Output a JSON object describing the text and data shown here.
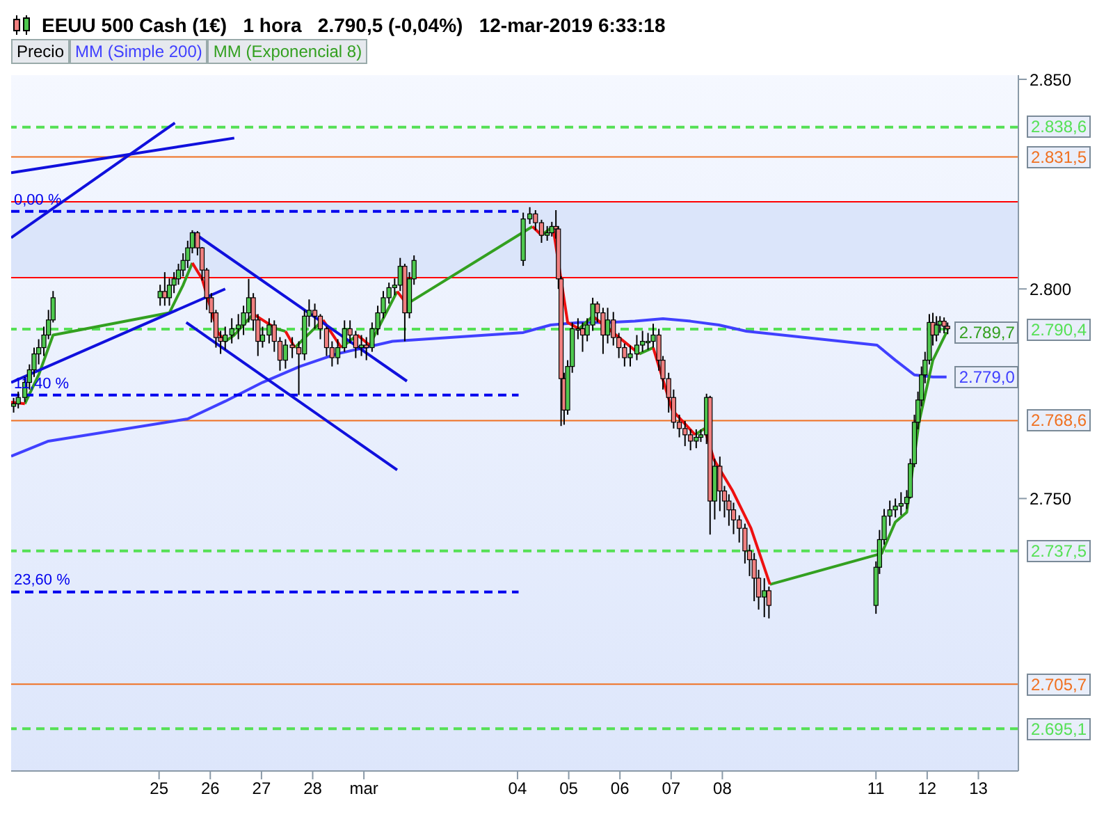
{
  "chart_data": {
    "type": "candlestick",
    "title": "EEUU 500 Cash (1€)   1 hora   2.790,5 (-0,04%)   12-mar-2019 6:33:18",
    "legend": "top left",
    "xlim": [
      "2019-02-22T02:40",
      "2019-03-13T18:45"
    ],
    "xticks": [
      {
        "value": "2019-02-25",
        "label": "25"
      },
      {
        "value": "2019-02-26",
        "label": "26"
      },
      {
        "value": "2019-02-27",
        "label": "27"
      },
      {
        "value": "2019-02-28",
        "label": "28"
      },
      {
        "value": "2019-03-01",
        "label": "mar"
      },
      {
        "value": "2019-03-04",
        "label": "04"
      },
      {
        "value": "2019-03-05",
        "label": "05"
      },
      {
        "value": "2019-03-06",
        "label": "06"
      },
      {
        "value": "2019-03-07",
        "label": "07"
      },
      {
        "value": "2019-03-08",
        "label": "08"
      },
      {
        "value": "2019-03-11",
        "label": "11"
      },
      {
        "value": "2019-03-12",
        "label": "12"
      },
      {
        "value": "2019-03-13",
        "label": "13"
      }
    ],
    "ylim": [
      2685,
      2851
    ],
    "yticks": [
      {
        "value": 2750,
        "label": "2.750"
      },
      {
        "value": 2800,
        "label": "2.800"
      },
      {
        "value": 2850,
        "label": "2.850"
      }
    ],
    "x": [
      "2019-02-22T03:50",
      "2019-02-22T06:00",
      "2019-02-22T09:05",
      "2019-02-22T11:15",
      "2019-02-22T13:25",
      "2019-02-22T15:35",
      "2019-02-22T18:00",
      "2019-02-22T20:10",
      "2019-02-22T22:20",
      "2019-02-25T00:30",
      "2019-02-25T02:40",
      "2019-02-25T04:50",
      "2019-02-25T07:00",
      "2019-02-25T09:05",
      "2019-02-25T11:15",
      "2019-02-25T13:25",
      "2019-02-25T15:35",
      "2019-02-25T18:00",
      "2019-02-25T20:10",
      "2019-02-25T22:20",
      "2019-02-26T00:30",
      "2019-02-26T02:40",
      "2019-02-26T04:50",
      "2019-02-26T07:00",
      "2019-02-26T10:05",
      "2019-02-26T13:10",
      "2019-02-26T15:35",
      "2019-02-26T18:00",
      "2019-02-26T20:10",
      "2019-02-26T22:20",
      "2019-02-27T00:30",
      "2019-02-27T03:35",
      "2019-02-27T06:00",
      "2019-02-27T08:40",
      "2019-02-27T11:15",
      "2019-02-27T14:25",
      "2019-02-27T17:30",
      "2019-02-27T20:10",
      "2019-02-27T22:20",
      "2019-02-28T01:00",
      "2019-02-28T03:35",
      "2019-02-28T06:30",
      "2019-02-28T09:05",
      "2019-02-28T11:45",
      "2019-02-28T14:55",
      "2019-02-28T17:30",
      "2019-02-28T20:10",
      "2019-02-28T22:50",
      "2019-03-01T01:10",
      "2019-03-01T03:50",
      "2019-03-01T06:30",
      "2019-03-01T09:05",
      "2019-03-01T11:45",
      "2019-03-01T14:25",
      "2019-03-01T17:00",
      "2019-03-01T19:10",
      "2019-03-01T21:20",
      "2019-03-01T23:30",
      "2019-03-04T02:40",
      "2019-03-04T05:45",
      "2019-03-04T08:25",
      "2019-03-04T11:15",
      "2019-03-04T13:55",
      "2019-03-04T16:05",
      "2019-03-04T18:00",
      "2019-03-04T19:10",
      "2019-03-04T20:25",
      "2019-03-04T21:50",
      "2019-03-04T23:30",
      "2019-03-05T01:40",
      "2019-03-05T04:20",
      "2019-03-05T06:30",
      "2019-03-05T08:40",
      "2019-03-05T11:15",
      "2019-03-05T13:25",
      "2019-03-05T16:05",
      "2019-03-05T18:15",
      "2019-03-05T20:55",
      "2019-03-05T23:30",
      "2019-03-06T02:10",
      "2019-03-06T04:50",
      "2019-03-06T07:55",
      "2019-03-06T10:35",
      "2019-03-06T13:10",
      "2019-03-06T15:35",
      "2019-03-06T18:15",
      "2019-03-06T20:10",
      "2019-03-06T22:50",
      "2019-03-07T01:10",
      "2019-03-07T03:50",
      "2019-03-07T06:30",
      "2019-03-07T09:05",
      "2019-03-07T11:45",
      "2019-03-07T13:55",
      "2019-03-07T16:35",
      "2019-03-07T18:15",
      "2019-03-07T20:25",
      "2019-03-07T22:50",
      "2019-03-08T01:00",
      "2019-03-08T03:05",
      "2019-03-08T05:15",
      "2019-03-08T07:55",
      "2019-03-08T10:35",
      "2019-03-08T12:45",
      "2019-03-08T14:55",
      "2019-03-08T17:00",
      "2019-03-08T19:40",
      "2019-03-08T21:50",
      "2019-03-11T00:00",
      "2019-03-11T01:40",
      "2019-03-11T03:50",
      "2019-03-11T06:30",
      "2019-03-11T09:05",
      "2019-03-11T11:45",
      "2019-03-11T14:25",
      "2019-03-11T16:05",
      "2019-03-11T18:00",
      "2019-03-11T19:40",
      "2019-03-11T21:20",
      "2019-03-11T23:00",
      "2019-03-12T01:00",
      "2019-03-12T02:40",
      "2019-03-12T04:20",
      "2019-03-12T06:00",
      "2019-03-12T07:55",
      "2019-03-12T09:35"
    ],
    "series": [
      {
        "name": "Precio",
        "type": "candlestick",
        "color": "#000000",
        "ohlc": [
          [
            2772.0,
            2774.0,
            2770.5,
            2772.6
          ],
          [
            2772.6,
            2775.5,
            2771.5,
            2774.1
          ],
          [
            2774.1,
            2779.0,
            2773.0,
            2777.7
          ],
          [
            2777.7,
            2782.0,
            2776.0,
            2780.7
          ],
          [
            2780.7,
            2786.0,
            2779.0,
            2784.5
          ],
          [
            2784.5,
            2788.0,
            2782.0,
            2786.0
          ],
          [
            2786.0,
            2791.0,
            2784.0,
            2789.0
          ],
          [
            2789.0,
            2795.0,
            2788.0,
            2792.6
          ],
          [
            2792.6,
            2799.5,
            2792.0,
            2797.9
          ],
          [
            2797.9,
            2801.0,
            2796.0,
            2799.4
          ],
          [
            2799.4,
            2804.0,
            2796.0,
            2797.9
          ],
          [
            2797.9,
            2802.5,
            2796.0,
            2800.9
          ],
          [
            2800.9,
            2804.0,
            2799.0,
            2802.4
          ],
          [
            2802.4,
            2806.0,
            2801.0,
            2804.5
          ],
          [
            2804.5,
            2808.5,
            2803.0,
            2806.8
          ],
          [
            2806.8,
            2811.5,
            2805.0,
            2809.8
          ],
          [
            2809.8,
            2814.0,
            2808.5,
            2813.4
          ],
          [
            2813.4,
            2813.8,
            2808.0,
            2809.8
          ],
          [
            2809.8,
            2810.0,
            2802.0,
            2804.5
          ],
          [
            2804.5,
            2805.0,
            2795.0,
            2797.9
          ],
          [
            2797.9,
            2799.0,
            2792.0,
            2794.3
          ],
          [
            2794.3,
            2795.0,
            2786.0,
            2788.4
          ],
          [
            2788.4,
            2790.0,
            2784.5,
            2787.5
          ],
          [
            2787.5,
            2791.0,
            2785.5,
            2789.0
          ],
          [
            2789.0,
            2793.0,
            2787.0,
            2790.5
          ],
          [
            2790.5,
            2794.0,
            2788.0,
            2791.4
          ],
          [
            2791.4,
            2796.0,
            2789.0,
            2794.3
          ],
          [
            2794.3,
            2802.4,
            2792.0,
            2797.9
          ],
          [
            2797.9,
            2799.0,
            2790.0,
            2792.6
          ],
          [
            2792.6,
            2794.0,
            2784.0,
            2787.5
          ],
          [
            2787.5,
            2791.0,
            2786.0,
            2789.0
          ],
          [
            2789.0,
            2793.0,
            2787.0,
            2791.4
          ],
          [
            2791.4,
            2792.5,
            2785.0,
            2787.5
          ],
          [
            2787.5,
            2788.5,
            2780.5,
            2783.0
          ],
          [
            2783.0,
            2788.0,
            2781.0,
            2786.6
          ],
          [
            2786.6,
            2788.5,
            2783.5,
            2786.0
          ],
          [
            2786.0,
            2787.5,
            2774.7,
            2784.5
          ],
          [
            2784.5,
            2795.0,
            2783.0,
            2793.5
          ],
          [
            2793.5,
            2797.5,
            2791.0,
            2794.9
          ],
          [
            2794.9,
            2796.5,
            2790.5,
            2793.5
          ],
          [
            2793.5,
            2794.0,
            2788.0,
            2790.5
          ],
          [
            2790.5,
            2791.0,
            2784.0,
            2786.0
          ],
          [
            2786.0,
            2787.5,
            2781.5,
            2783.6
          ],
          [
            2783.6,
            2788.0,
            2782.0,
            2786.0
          ],
          [
            2786.0,
            2792.5,
            2785.0,
            2790.5
          ],
          [
            2790.5,
            2792.5,
            2787.0,
            2789.0
          ],
          [
            2789.0,
            2790.0,
            2783.5,
            2786.0
          ],
          [
            2786.0,
            2789.0,
            2784.0,
            2786.6
          ],
          [
            2786.6,
            2788.5,
            2783.0,
            2786.0
          ],
          [
            2786.0,
            2792.0,
            2785.0,
            2790.5
          ],
          [
            2790.5,
            2796.0,
            2789.0,
            2794.3
          ],
          [
            2794.3,
            2799.5,
            2793.0,
            2797.9
          ],
          [
            2797.9,
            2801.5,
            2796.5,
            2800.3
          ],
          [
            2800.3,
            2802.5,
            2798.5,
            2800.9
          ],
          [
            2800.9,
            2807.4,
            2799.5,
            2805.4
          ],
          [
            2805.4,
            2806.0,
            2787.5,
            2794.3
          ],
          [
            2794.3,
            2804.0,
            2793.0,
            2802.4
          ],
          [
            2802.4,
            2808.0,
            2801.0,
            2806.8
          ],
          [
            2806.8,
            2818.2,
            2805.5,
            2816.7
          ],
          [
            2816.7,
            2819.5,
            2815.5,
            2817.9
          ],
          [
            2817.9,
            2818.8,
            2814.0,
            2815.8
          ],
          [
            2815.8,
            2816.5,
            2811.0,
            2812.8
          ],
          [
            2812.8,
            2815.0,
            2811.5,
            2813.4
          ],
          [
            2813.4,
            2816.0,
            2812.5,
            2814.9
          ],
          [
            2814.9,
            2818.8,
            2812.0,
            2814.3
          ],
          [
            2814.3,
            2815.0,
            2800.0,
            2802.4
          ],
          [
            2802.4,
            2803.0,
            2767.3,
            2778.6
          ],
          [
            2778.6,
            2780.0,
            2767.6,
            2771.1
          ],
          [
            2771.1,
            2783.0,
            2770.0,
            2781.5
          ],
          [
            2781.5,
            2792.0,
            2780.0,
            2790.5
          ],
          [
            2790.5,
            2793.0,
            2788.0,
            2790.5
          ],
          [
            2790.5,
            2792.0,
            2785.0,
            2789.0
          ],
          [
            2789.0,
            2793.0,
            2787.5,
            2791.4
          ],
          [
            2791.4,
            2797.9,
            2790.0,
            2796.4
          ],
          [
            2796.4,
            2797.0,
            2792.0,
            2794.3
          ],
          [
            2794.3,
            2795.5,
            2784.5,
            2789.0
          ],
          [
            2789.0,
            2795.5,
            2787.0,
            2792.6
          ],
          [
            2792.6,
            2794.5,
            2786.5,
            2788.4
          ],
          [
            2788.4,
            2789.5,
            2783.5,
            2786.0
          ],
          [
            2786.0,
            2787.0,
            2781.5,
            2783.6
          ],
          [
            2783.6,
            2786.5,
            2781.5,
            2784.5
          ],
          [
            2784.5,
            2789.0,
            2783.0,
            2786.6
          ],
          [
            2786.6,
            2790.0,
            2785.0,
            2787.5
          ],
          [
            2787.5,
            2789.5,
            2785.5,
            2787.5
          ],
          [
            2787.5,
            2791.7,
            2786.0,
            2789.0
          ],
          [
            2789.0,
            2790.5,
            2780.5,
            2783.0
          ],
          [
            2783.0,
            2784.0,
            2776.0,
            2778.6
          ],
          [
            2778.6,
            2780.0,
            2770.5,
            2774.1
          ],
          [
            2774.1,
            2776.0,
            2766.7,
            2768.2
          ],
          [
            2768.2,
            2770.0,
            2764.6,
            2766.7
          ],
          [
            2766.7,
            2768.5,
            2762.5,
            2765.2
          ],
          [
            2765.2,
            2766.5,
            2761.5,
            2763.7
          ],
          [
            2763.7,
            2766.5,
            2762.0,
            2764.6
          ],
          [
            2764.6,
            2766.5,
            2763.5,
            2765.2
          ],
          [
            2765.2,
            2775.0,
            2763.0,
            2774.1
          ],
          [
            2774.1,
            2774.5,
            2741.4,
            2749.4
          ],
          [
            2749.4,
            2759.5,
            2745.0,
            2757.7
          ],
          [
            2757.7,
            2760.0,
            2747.0,
            2751.8
          ],
          [
            2751.8,
            2753.0,
            2745.5,
            2749.4
          ],
          [
            2749.4,
            2751.0,
            2743.5,
            2747.3
          ],
          [
            2747.3,
            2749.0,
            2741.5,
            2744.9
          ],
          [
            2744.9,
            2746.0,
            2739.5,
            2742.9
          ],
          [
            2742.9,
            2744.0,
            2734.5,
            2737.5
          ],
          [
            2737.5,
            2739.0,
            2731.5,
            2735.4
          ],
          [
            2735.4,
            2737.0,
            2725.5,
            2731.0
          ],
          [
            2731.0,
            2733.0,
            2723.5,
            2726.5
          ],
          [
            2726.5,
            2731.0,
            2721.7,
            2728.0
          ],
          [
            2728.0,
            2729.0,
            2721.4,
            2724.5
          ],
          [
            2724.5,
            2735.0,
            2722.5,
            2733.6
          ],
          [
            2733.6,
            2742.5,
            2732.0,
            2740.2
          ],
          [
            2740.2,
            2747.5,
            2739.0,
            2745.8
          ],
          [
            2745.8,
            2749.5,
            2743.5,
            2747.3
          ],
          [
            2747.3,
            2750.0,
            2745.5,
            2748.2
          ],
          [
            2748.2,
            2751.5,
            2746.0,
            2748.8
          ],
          [
            2748.8,
            2752.0,
            2747.5,
            2750.3
          ],
          [
            2750.3,
            2759.5,
            2750.0,
            2758.3
          ],
          [
            2758.3,
            2770.0,
            2757.5,
            2768.2
          ],
          [
            2768.2,
            2775.5,
            2766.5,
            2773.5
          ],
          [
            2773.5,
            2781.5,
            2772.0,
            2779.5
          ],
          [
            2779.5,
            2785.0,
            2777.5,
            2783.0
          ],
          [
            2783.0,
            2794.0,
            2782.0,
            2792.0
          ],
          [
            2792.0,
            2794.3,
            2786.5,
            2789.0
          ],
          [
            2789.0,
            2793.5,
            2787.5,
            2791.4
          ],
          [
            2791.4,
            2793.5,
            2789.5,
            2792.3
          ],
          [
            2792.3,
            2793.2,
            2789.4,
            2791.1
          ],
          [
            2791.1,
            2792.0,
            2789.2,
            2790.5
          ]
        ]
      },
      {
        "name": "MM (Simple 200)",
        "type": "line",
        "color": "#4040ff",
        "x": [
          "2019-02-22T02:40",
          "2019-02-22T20:10",
          "2019-02-25T13:25",
          "2019-02-26T07:00",
          "2019-02-27T00:30",
          "2019-02-27T18:00",
          "2019-02-28T11:15",
          "2019-03-01T00:30",
          "2019-03-01T13:25",
          "2019-03-04T02:40",
          "2019-03-04T15:35",
          "2019-03-05T04:50",
          "2019-03-05T18:00",
          "2019-03-06T07:00",
          "2019-03-06T20:10",
          "2019-03-07T09:05",
          "2019-03-07T22:20",
          "2019-03-08T11:15",
          "2019-03-11T00:30",
          "2019-03-11T09:05",
          "2019-03-11T18:00",
          "2019-03-12T02:40",
          "2019-03-12T09:05"
        ],
        "values": [
          2760.1,
          2763.7,
          2769.0,
          2773.2,
          2777.7,
          2781.5,
          2784.5,
          2786.0,
          2787.5,
          2789.6,
          2791.4,
          2792.0,
          2792.0,
          2792.3,
          2792.9,
          2792.3,
          2791.4,
          2789.9,
          2786.6,
          2783.0,
          2779.5,
          2779.0,
          2779.0
        ],
        "value_labels": [
          null,
          null,
          null,
          null,
          null,
          null,
          null,
          null,
          null,
          null,
          null,
          null,
          null,
          null,
          null,
          null,
          null,
          null,
          null,
          null,
          null,
          null,
          "2.779,0"
        ]
      },
      {
        "name": "MM (Exponencial 8)",
        "type": "line",
        "color": "#33a020",
        "x": [
          "2019-02-22T09:05",
          "2019-02-22T15:35",
          "2019-02-22T22:20",
          "2019-02-25T04:50",
          "2019-02-25T11:15",
          "2019-02-25T15:35",
          "2019-02-25T23:15",
          "2019-02-26T07:00",
          "2019-02-26T11:15",
          "2019-02-26T20:10",
          "2019-02-27T01:25",
          "2019-02-27T07:00",
          "2019-02-27T11:15",
          "2019-02-27T13:25",
          "2019-02-27T15:35",
          "2019-02-28T04:50",
          "2019-02-28T09:05",
          "2019-02-28T13:25",
          "2019-02-28T20:55",
          "2019-02-28T23:45",
          "2019-03-01T02:40",
          "2019-03-01T15:35",
          "2019-03-01T18:00",
          "2019-03-01T20:10",
          "2019-03-04T07:00",
          "2019-03-04T09:05",
          "2019-03-04T11:15",
          "2019-03-04T16:35",
          "2019-03-04T21:35",
          "2019-03-05T04:50",
          "2019-03-05T11:15",
          "2019-03-05T21:35",
          "2019-03-06T09:05",
          "2019-03-06T15:35",
          "2019-03-07T01:25",
          "2019-03-07T11:15",
          "2019-03-07T15:35",
          "2019-03-08T07:10",
          "2019-03-08T22:20",
          "2019-03-11T02:40",
          "2019-03-11T09:05",
          "2019-03-11T14:25",
          "2019-03-11T20:10",
          "2019-03-12T02:40",
          "2019-03-12T09:05"
        ],
        "values": [
          2772.6,
          2779.5,
          2789.0,
          2794.3,
          2800.9,
          2806.2,
          null,
          2787.5,
          2789.0,
          2794.0,
          null,
          2790.5,
          2789.9,
          null,
          2786.0,
          2792.6,
          null,
          2786.0,
          2789.0,
          null,
          2786.6,
          2799.4,
          null,
          2796.4,
          2814.9,
          null,
          2812.8,
          2814.9,
          null,
          2790.5,
          2793.5,
          null,
          2784.5,
          2786.0,
          null,
          2765.2,
          2766.7,
          null,
          2729.5,
          2736.9,
          2744.4,
          2746.7,
          2768.2,
          2783.0,
          2789.7
        ],
        "value_labels": [
          null,
          null,
          null,
          null,
          null,
          null,
          null,
          null,
          null,
          null,
          null,
          null,
          null,
          null,
          null,
          null,
          null,
          null,
          null,
          null,
          null,
          null,
          null,
          null,
          null,
          null,
          null,
          null,
          null,
          null,
          null,
          null,
          null,
          null,
          null,
          null,
          null,
          null,
          null,
          null,
          null,
          null,
          null,
          null,
          "2.789,7"
        ]
      },
      {
        "type": "line",
        "color": "#ee1010",
        "x": [
          "2019-02-22T02:40",
          "2019-02-22T09:05",
          "2019-02-25T00:00",
          "2019-02-25T15:35",
          "2019-02-25T20:10",
          "2019-02-26T00:30",
          "2019-02-26T03:35",
          "2019-02-26T07:00",
          "2019-02-26T13:25",
          "2019-02-26T20:10",
          "2019-02-27T07:00",
          "2019-02-27T09:05",
          "2019-02-27T11:15",
          "2019-02-27T15:35",
          "2019-02-27T22:05",
          "2019-02-28T04:50",
          "2019-02-28T13:25",
          "2019-02-28T17:00",
          "2019-02-28T20:55",
          "2019-03-01T02:40",
          "2019-03-01T09:05",
          "2019-03-01T15:35",
          "2019-03-01T20:10",
          "2019-03-04T01:25",
          "2019-03-04T07:00",
          "2019-03-04T11:15",
          "2019-03-04T13:55",
          "2019-03-04T16:35",
          "2019-03-04T23:30",
          "2019-03-05T04:50",
          "2019-03-05T07:55",
          "2019-03-05T11:15",
          "2019-03-06T09:05",
          "2019-03-06T12:15",
          "2019-03-06T15:35",
          "2019-03-07T00:30",
          "2019-03-07T11:15",
          "2019-03-07T13:25",
          "2019-03-07T15:35",
          "2019-03-07T20:10",
          "2019-03-08T04:50",
          "2019-03-08T13:25",
          "2019-03-08T22:20"
        ],
        "values": [
          2773.0,
          2772.6,
          null,
          2806.2,
          2802.4,
          2794.9,
          2789.6,
          2787.5,
          null,
          2794.0,
          2790.5,
          null,
          2789.9,
          2786.0,
          null,
          2792.6,
          2786.0,
          null,
          2789.0,
          2786.6,
          null,
          2799.4,
          2796.4,
          null,
          2814.9,
          2812.8,
          null,
          2814.9,
          2792.0,
          2790.5,
          null,
          2793.5,
          2784.5,
          null,
          2786.0,
          2771.1,
          2765.2,
          null,
          2766.7,
          2759.2,
          2751.8,
          2742.9,
          2729.5
        ]
      },
      {
        "type": "line",
        "color": "#0000ee",
        "line_style": "dashed",
        "x": [
          "2019-02-22T02:40",
          "2019-03-04T00:30"
        ],
        "values": [
          2818.5,
          2818.5
        ]
      },
      {
        "type": "line",
        "color": "#0000ee",
        "line_style": "dashed",
        "x": [
          "2019-02-22T02:40",
          "2019-03-04T00:30"
        ],
        "values": [
          2774.7,
          2774.7
        ]
      },
      {
        "type": "line",
        "color": "#0000ee",
        "line_style": "dashed",
        "x": [
          "2019-02-22T02:40",
          "2019-03-04T00:30"
        ],
        "values": [
          2727.7,
          2727.7
        ]
      },
      {
        "type": "line",
        "color": "#1010dd",
        "x": [
          "2019-02-22T02:40",
          "2019-02-25T07:25"
        ],
        "values": [
          2812.2,
          2839.6
        ]
      },
      {
        "type": "line",
        "color": "#1010dd",
        "x": [
          "2019-02-22T02:40",
          "2019-02-26T11:15"
        ],
        "values": [
          2827.7,
          2836.0
        ]
      },
      {
        "type": "line",
        "color": "#1010dd",
        "x": [
          "2019-02-22T02:40",
          "2019-02-26T07:00"
        ],
        "values": [
          2777.7,
          2800.0
        ]
      },
      {
        "type": "line",
        "color": "#1010dd",
        "x": [
          "2019-02-25T16:05",
          "2019-03-01T20:10"
        ],
        "values": [
          2813.4,
          2778.0
        ]
      },
      {
        "type": "line",
        "color": "#1010dd",
        "x": [
          "2019-02-25T12:45",
          "2019-03-01T15:35"
        ],
        "values": [
          2792.0,
          2756.8
        ]
      }
    ],
    "bands": [
      {
        "axis": "y",
        "from": 2802.7,
        "to": 2820.8,
        "color": "#dbe5fa"
      }
    ],
    "ref_lines": [
      {
        "axis": "y",
        "value": 2838.6,
        "label": "2.838,6",
        "color": "#55e055",
        "line_style": "dashed"
      },
      {
        "axis": "y",
        "value": 2831.5,
        "label": "2.831,5",
        "color": "#f07020",
        "line_style": "solid"
      },
      {
        "axis": "y",
        "value": 2820.8,
        "color": "#ff0000",
        "line_style": "solid"
      },
      {
        "axis": "y",
        "value": 2802.7,
        "color": "#ff0000",
        "line_style": "solid"
      },
      {
        "axis": "y",
        "value": 2790.4,
        "label": "2.790,4",
        "color": "#55e055",
        "line_style": "dashed"
      },
      {
        "axis": "y",
        "value": 2768.6,
        "label": "2.768,6",
        "color": "#f07020",
        "line_style": "solid"
      },
      {
        "axis": "y",
        "value": 2737.5,
        "label": "2.737,5",
        "color": "#55e055",
        "line_style": "dashed"
      },
      {
        "axis": "y",
        "value": 2705.7,
        "label": "2.705,7",
        "color": "#f07020",
        "line_style": "solid"
      },
      {
        "axis": "y",
        "value": 2695.1,
        "label": "2.695,1",
        "color": "#55e055",
        "line_style": "dashed"
      }
    ],
    "annotations": [
      {
        "text": "0,00 %",
        "x": "2019-02-22T02:40",
        "y": 2818.5
      },
      {
        "text": "11,40 %",
        "x": "2019-02-22T02:40",
        "y": 2774.7
      },
      {
        "text": "23,60 %",
        "x": "2019-02-22T02:40",
        "y": 2727.7
      }
    ]
  }
}
